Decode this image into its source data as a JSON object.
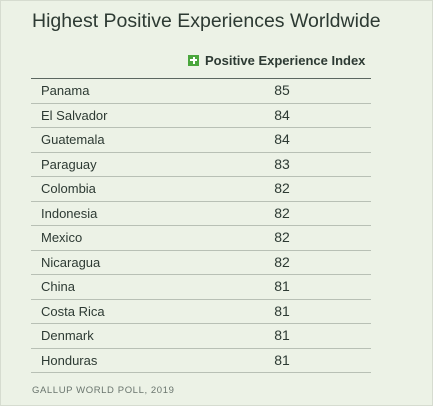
{
  "title": "Highest Positive Experiences Worldwide",
  "legend": {
    "label": "Positive Experience Index",
    "icon": "plus-icon",
    "color": "#4aa63c"
  },
  "source": "GALLUP WORLD POLL, 2019",
  "chart_data": {
    "type": "table",
    "title": "Highest Positive Experiences Worldwide",
    "columns": [
      "",
      "Positive Experience Index"
    ],
    "series": [
      {
        "name": "Positive Experience Index",
        "values": [
          85,
          84,
          84,
          83,
          82,
          82,
          82,
          82,
          81,
          81,
          81,
          81
        ]
      }
    ],
    "rows": [
      {
        "country": "Panama",
        "value": "85"
      },
      {
        "country": "El Salvador",
        "value": "84"
      },
      {
        "country": "Guatemala",
        "value": "84"
      },
      {
        "country": "Paraguay",
        "value": "83"
      },
      {
        "country": "Colombia",
        "value": "82"
      },
      {
        "country": "Indonesia",
        "value": "82"
      },
      {
        "country": "Mexico",
        "value": "82"
      },
      {
        "country": "Nicaragua",
        "value": "82"
      },
      {
        "country": "China",
        "value": "81"
      },
      {
        "country": "Costa Rica",
        "value": "81"
      },
      {
        "country": "Denmark",
        "value": "81"
      },
      {
        "country": "Honduras",
        "value": "81"
      }
    ]
  }
}
